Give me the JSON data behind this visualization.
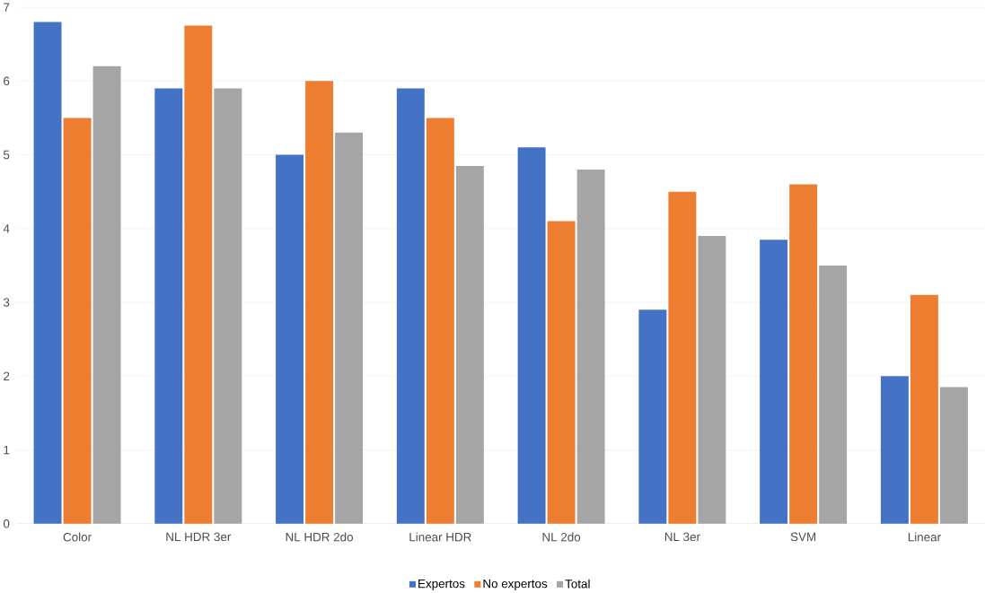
{
  "chart_data": {
    "type": "bar",
    "categories": [
      "Color",
      "NL HDR 3er",
      "NL HDR 2do",
      "Linear HDR",
      "NL 2do",
      "NL 3er",
      "SVM",
      "Linear"
    ],
    "series": [
      {
        "name": "Expertos",
        "color": "#4472c4",
        "values": [
          6.8,
          5.9,
          5.0,
          5.9,
          5.1,
          2.9,
          3.85,
          2.0
        ]
      },
      {
        "name": "No expertos",
        "color": "#ed7d31",
        "values": [
          5.5,
          6.75,
          6.0,
          5.5,
          4.1,
          4.5,
          4.6,
          3.1
        ]
      },
      {
        "name": "Total",
        "color": "#a5a5a5",
        "values": [
          6.2,
          5.9,
          5.3,
          4.85,
          4.8,
          3.9,
          3.5,
          1.85
        ]
      }
    ],
    "ylim": [
      0,
      7
    ],
    "yticks": [
      0,
      1,
      2,
      3,
      4,
      5,
      6,
      7
    ],
    "grid": "y",
    "legend": "bottom"
  }
}
